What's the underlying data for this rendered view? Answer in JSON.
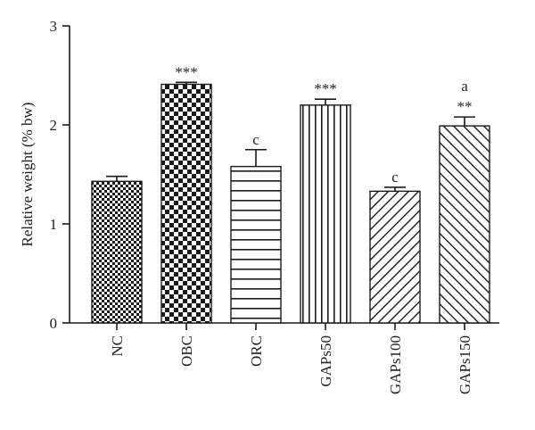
{
  "chart_data": {
    "type": "bar",
    "title": "",
    "xlabel": "",
    "ylabel": "Relative weight (% bw)",
    "ylim": [
      0,
      3
    ],
    "yticks": [
      0,
      1,
      2,
      3
    ],
    "categories": [
      "NC",
      "OBC",
      "ORC",
      "GAPs50",
      "GAPs100",
      "GAPs150"
    ],
    "values": [
      1.43,
      2.41,
      1.58,
      2.2,
      1.33,
      1.99
    ],
    "errors": [
      0.05,
      0.02,
      0.17,
      0.06,
      0.04,
      0.09
    ],
    "annotations": [
      "",
      "***",
      "c",
      "***",
      "c",
      "**"
    ],
    "annotations_top": [
      "",
      "",
      "",
      "",
      "",
      "a"
    ],
    "patterns": [
      "fine-checker",
      "coarse-checker",
      "horizontal-lines",
      "vertical-lines",
      "diagonal-forward",
      "diagonal-backward"
    ],
    "grid": false,
    "legend": "none",
    "color": "#1a1a1a"
  }
}
